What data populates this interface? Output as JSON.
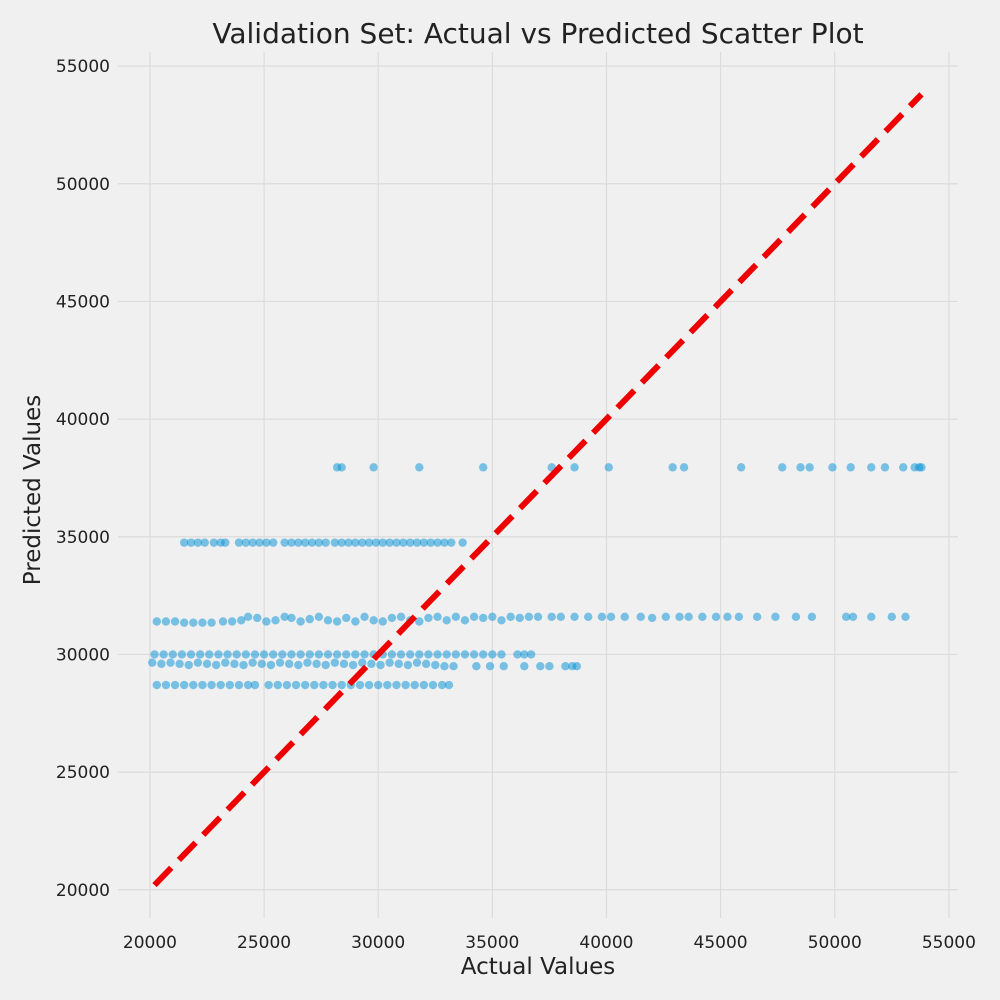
{
  "chart_data": {
    "type": "scatter",
    "title": "Validation Set: Actual vs Predicted Scatter Plot",
    "xlabel": "Actual Values",
    "ylabel": "Predicted Values",
    "xlim": [
      18600,
      55400
    ],
    "ylim": [
      18800,
      55600
    ],
    "xticks": [
      20000,
      25000,
      30000,
      35000,
      40000,
      45000,
      50000,
      55000
    ],
    "yticks": [
      20000,
      25000,
      30000,
      35000,
      40000,
      45000,
      50000,
      55000
    ],
    "grid": true,
    "colors": {
      "points": "#008fd5",
      "reference_line": "#ee0000",
      "background": "#f0f0f0",
      "grid": "#dcdcdc"
    },
    "reference_line": {
      "style": "dashed",
      "from": [
        20200,
        20200
      ],
      "to": [
        53800,
        53800
      ]
    },
    "series": [
      {
        "marker": "circle",
        "alpha": 0.5,
        "points": [
          [
            28200,
            37950
          ],
          [
            28400,
            37950
          ],
          [
            29800,
            37950
          ],
          [
            31800,
            37950
          ],
          [
            34600,
            37950
          ],
          [
            37600,
            37950
          ],
          [
            38600,
            37950
          ],
          [
            40100,
            37950
          ],
          [
            42900,
            37950
          ],
          [
            43400,
            37950
          ],
          [
            45900,
            37950
          ],
          [
            47700,
            37950
          ],
          [
            48500,
            37950
          ],
          [
            48900,
            37950
          ],
          [
            49900,
            37950
          ],
          [
            50700,
            37950
          ],
          [
            51600,
            37950
          ],
          [
            52200,
            37950
          ],
          [
            53000,
            37950
          ],
          [
            53500,
            37950
          ],
          [
            53700,
            37950
          ],
          [
            53800,
            37950
          ],
          [
            21500,
            34750
          ],
          [
            21800,
            34750
          ],
          [
            22100,
            34750
          ],
          [
            22400,
            34750
          ],
          [
            22800,
            34750
          ],
          [
            23100,
            34750
          ],
          [
            23300,
            34750
          ],
          [
            23900,
            34750
          ],
          [
            24200,
            34750
          ],
          [
            24500,
            34750
          ],
          [
            24800,
            34750
          ],
          [
            25100,
            34750
          ],
          [
            25400,
            34750
          ],
          [
            25900,
            34750
          ],
          [
            26200,
            34750
          ],
          [
            26500,
            34750
          ],
          [
            26800,
            34750
          ],
          [
            27100,
            34750
          ],
          [
            27400,
            34750
          ],
          [
            27700,
            34750
          ],
          [
            28100,
            34750
          ],
          [
            28400,
            34750
          ],
          [
            28700,
            34750
          ],
          [
            29000,
            34750
          ],
          [
            29300,
            34750
          ],
          [
            29600,
            34750
          ],
          [
            29900,
            34750
          ],
          [
            30200,
            34750
          ],
          [
            30500,
            34750
          ],
          [
            30800,
            34750
          ],
          [
            31100,
            34750
          ],
          [
            31400,
            34750
          ],
          [
            31700,
            34750
          ],
          [
            32000,
            34750
          ],
          [
            32300,
            34750
          ],
          [
            32600,
            34750
          ],
          [
            32900,
            34750
          ],
          [
            33200,
            34750
          ],
          [
            33700,
            34750
          ],
          [
            20300,
            31400
          ],
          [
            20700,
            31400
          ],
          [
            21100,
            31400
          ],
          [
            21500,
            31350
          ],
          [
            21900,
            31350
          ],
          [
            22300,
            31350
          ],
          [
            22700,
            31350
          ],
          [
            23200,
            31400
          ],
          [
            23600,
            31400
          ],
          [
            24000,
            31450
          ],
          [
            24300,
            31600
          ],
          [
            24700,
            31550
          ],
          [
            25100,
            31400
          ],
          [
            25500,
            31450
          ],
          [
            25900,
            31600
          ],
          [
            26200,
            31550
          ],
          [
            26600,
            31400
          ],
          [
            27000,
            31500
          ],
          [
            27400,
            31600
          ],
          [
            27800,
            31450
          ],
          [
            28200,
            31400
          ],
          [
            28600,
            31550
          ],
          [
            29000,
            31400
          ],
          [
            29400,
            31600
          ],
          [
            29800,
            31450
          ],
          [
            30200,
            31400
          ],
          [
            30600,
            31550
          ],
          [
            31000,
            31600
          ],
          [
            31400,
            31450
          ],
          [
            31800,
            31400
          ],
          [
            32200,
            31550
          ],
          [
            32600,
            31600
          ],
          [
            33000,
            31450
          ],
          [
            33400,
            31600
          ],
          [
            33800,
            31450
          ],
          [
            34200,
            31600
          ],
          [
            34600,
            31550
          ],
          [
            35000,
            31600
          ],
          [
            35400,
            31450
          ],
          [
            35800,
            31600
          ],
          [
            36200,
            31550
          ],
          [
            36600,
            31600
          ],
          [
            37000,
            31600
          ],
          [
            37600,
            31600
          ],
          [
            38000,
            31600
          ],
          [
            38600,
            31600
          ],
          [
            39200,
            31600
          ],
          [
            39800,
            31600
          ],
          [
            40200,
            31600
          ],
          [
            40800,
            31600
          ],
          [
            41500,
            31600
          ],
          [
            42000,
            31550
          ],
          [
            42600,
            31600
          ],
          [
            43200,
            31600
          ],
          [
            43600,
            31600
          ],
          [
            44200,
            31600
          ],
          [
            44800,
            31600
          ],
          [
            45300,
            31600
          ],
          [
            45800,
            31600
          ],
          [
            46600,
            31600
          ],
          [
            47400,
            31600
          ],
          [
            48300,
            31600
          ],
          [
            49000,
            31600
          ],
          [
            50500,
            31600
          ],
          [
            50800,
            31600
          ],
          [
            51600,
            31600
          ],
          [
            52500,
            31600
          ],
          [
            53100,
            31600
          ],
          [
            20200,
            30000
          ],
          [
            20600,
            30000
          ],
          [
            21000,
            30000
          ],
          [
            21400,
            30000
          ],
          [
            21800,
            30000
          ],
          [
            22200,
            30000
          ],
          [
            22600,
            30000
          ],
          [
            23000,
            30000
          ],
          [
            23400,
            30000
          ],
          [
            23800,
            30000
          ],
          [
            24200,
            30000
          ],
          [
            24600,
            30000
          ],
          [
            25000,
            30000
          ],
          [
            25400,
            30000
          ],
          [
            25800,
            30000
          ],
          [
            26200,
            30000
          ],
          [
            26600,
            30000
          ],
          [
            27000,
            30000
          ],
          [
            27400,
            30000
          ],
          [
            27800,
            30000
          ],
          [
            28200,
            30000
          ],
          [
            28600,
            30000
          ],
          [
            29000,
            30000
          ],
          [
            29400,
            30000
          ],
          [
            29800,
            30000
          ],
          [
            30200,
            30000
          ],
          [
            30600,
            30000
          ],
          [
            31000,
            30000
          ],
          [
            31400,
            30000
          ],
          [
            31800,
            30000
          ],
          [
            32200,
            30000
          ],
          [
            32600,
            30000
          ],
          [
            33000,
            30000
          ],
          [
            33400,
            30000
          ],
          [
            33800,
            30000
          ],
          [
            34200,
            30000
          ],
          [
            34600,
            30000
          ],
          [
            35000,
            30000
          ],
          [
            35400,
            30000
          ],
          [
            36100,
            30000
          ],
          [
            36400,
            30000
          ],
          [
            36700,
            30000
          ],
          [
            20100,
            29650
          ],
          [
            20500,
            29600
          ],
          [
            20900,
            29650
          ],
          [
            21300,
            29600
          ],
          [
            21700,
            29550
          ],
          [
            22100,
            29650
          ],
          [
            22500,
            29600
          ],
          [
            22900,
            29550
          ],
          [
            23300,
            29650
          ],
          [
            23700,
            29600
          ],
          [
            24100,
            29550
          ],
          [
            24500,
            29650
          ],
          [
            24900,
            29600
          ],
          [
            25300,
            29550
          ],
          [
            25700,
            29650
          ],
          [
            26100,
            29600
          ],
          [
            26500,
            29550
          ],
          [
            26900,
            29650
          ],
          [
            27300,
            29600
          ],
          [
            27700,
            29550
          ],
          [
            28100,
            29650
          ],
          [
            28500,
            29600
          ],
          [
            28900,
            29550
          ],
          [
            29300,
            29650
          ],
          [
            29700,
            29600
          ],
          [
            30100,
            29550
          ],
          [
            30500,
            29650
          ],
          [
            30900,
            29600
          ],
          [
            31300,
            29550
          ],
          [
            31700,
            29650
          ],
          [
            32100,
            29600
          ],
          [
            32500,
            29550
          ],
          [
            32900,
            29500
          ],
          [
            33300,
            29500
          ],
          [
            34300,
            29500
          ],
          [
            34900,
            29500
          ],
          [
            35500,
            29500
          ],
          [
            36400,
            29500
          ],
          [
            37100,
            29500
          ],
          [
            37500,
            29500
          ],
          [
            38200,
            29500
          ],
          [
            38500,
            29500
          ],
          [
            38700,
            29500
          ],
          [
            20300,
            28700
          ],
          [
            20700,
            28700
          ],
          [
            21100,
            28700
          ],
          [
            21500,
            28700
          ],
          [
            21900,
            28700
          ],
          [
            22300,
            28700
          ],
          [
            22700,
            28700
          ],
          [
            23100,
            28700
          ],
          [
            23500,
            28700
          ],
          [
            23900,
            28700
          ],
          [
            24300,
            28700
          ],
          [
            24600,
            28700
          ],
          [
            25200,
            28700
          ],
          [
            25600,
            28700
          ],
          [
            26000,
            28700
          ],
          [
            26400,
            28700
          ],
          [
            26800,
            28700
          ],
          [
            27200,
            28700
          ],
          [
            27600,
            28700
          ],
          [
            28000,
            28700
          ],
          [
            28400,
            28700
          ],
          [
            28800,
            28700
          ],
          [
            29200,
            28700
          ],
          [
            29600,
            28700
          ],
          [
            30000,
            28700
          ],
          [
            30400,
            28700
          ],
          [
            30800,
            28700
          ],
          [
            31200,
            28700
          ],
          [
            31600,
            28700
          ],
          [
            32000,
            28700
          ],
          [
            32400,
            28700
          ],
          [
            32800,
            28700
          ],
          [
            33100,
            28700
          ]
        ]
      }
    ]
  }
}
